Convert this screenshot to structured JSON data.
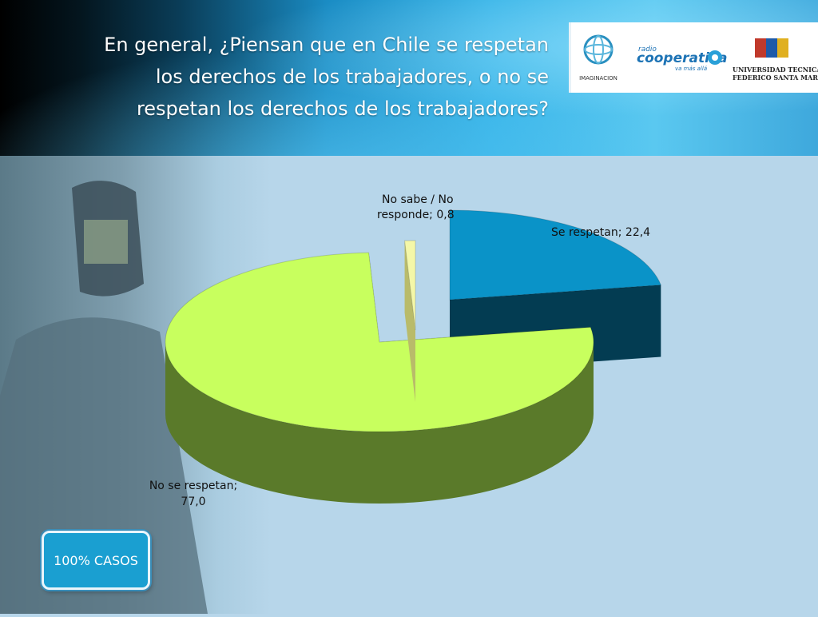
{
  "title": "En general, ¿Piensan que en Chile se respetan los derechos de los trabajadores, o no se respetan los derechos de los trabajadores?",
  "logos": {
    "imaginacion": "IMAGINACION",
    "radio": "radio",
    "cooperativa": "cooperativa",
    "cooperativa_tagline": "va más allá",
    "university_line1": "UNIVERSIDAD TECNICA",
    "university_line2": "FEDERICO SANTA MARIA"
  },
  "cases_label": "100% CASOS",
  "colors": {
    "se_respetan": "#0a93c8",
    "no_se_respetan": "#c8ff5e",
    "no_sabe": "#f4f7a8",
    "header_accent": "#36b3e7",
    "cases_box": "#1a9fd1"
  },
  "chart_data": {
    "type": "pie",
    "style": "3d-exploded",
    "categories": [
      "Se respetan",
      "No se respetan",
      "No sabe / No responde"
    ],
    "values": [
      22.4,
      77.0,
      0.8
    ],
    "labels": {
      "se_respetan": "Se respetan; 22,4",
      "no_se_respetan_line1": "No se respetan;",
      "no_se_respetan_line2": "77,0",
      "no_sabe_line1": "No sabe / No",
      "no_sabe_line2": "responde; 0,8"
    }
  }
}
